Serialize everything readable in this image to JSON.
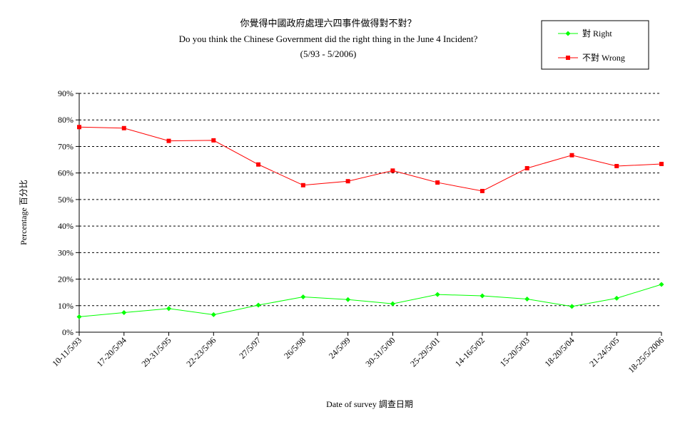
{
  "chart_data": {
    "type": "line",
    "title": "你覺得中國政府處理六四事件做得對不對？",
    "subtitle": "Do you think the Chinese Government did the right thing in the June 4 Incident?",
    "period": "(5/93 - 5/2006)",
    "xlabel": "Date of survey  調查日期",
    "ylabel": "Percentage  百分比",
    "ylim": [
      0,
      90
    ],
    "yticks": [
      "0%",
      "10%",
      "20%",
      "30%",
      "40%",
      "50%",
      "60%",
      "70%",
      "80%",
      "90%"
    ],
    "grid": true,
    "legend_position": "top-right",
    "categories": [
      "10-11/5/93",
      "17-20/5/94",
      "29-31/5/95",
      "22-23/5/96",
      "27/5/97",
      "26/5/98",
      "24/5/99",
      "30-31/5/00",
      "25-29/5/01",
      "14-16/5/02",
      "15-20/5/03",
      "18-20/5/04",
      "21-24/5/05",
      "18-25/5/2006"
    ],
    "series": [
      {
        "name": "對 Right",
        "color": "#00ff00",
        "marker": "diamond",
        "values": [
          5.8,
          7.4,
          8.9,
          6.6,
          10.2,
          13.3,
          12.3,
          10.7,
          14.2,
          13.7,
          12.5,
          9.7,
          12.8,
          18.0
        ]
      },
      {
        "name": "不對 Wrong",
        "color": "#ff0000",
        "marker": "square",
        "values": [
          77.3,
          76.9,
          72.1,
          72.3,
          63.2,
          55.4,
          56.9,
          60.9,
          56.4,
          53.2,
          61.8,
          66.7,
          62.6,
          63.4
        ]
      }
    ]
  }
}
